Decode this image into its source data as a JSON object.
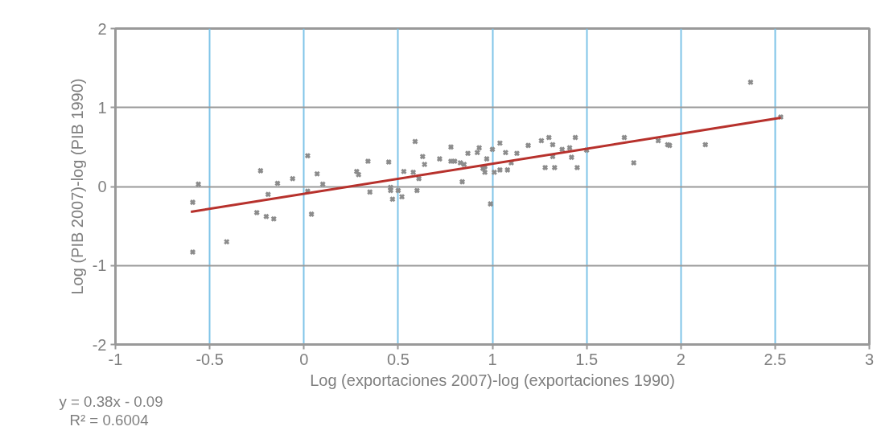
{
  "chart_data": {
    "type": "scatter",
    "xlabel": "Log (exportaciones 2007)-log (exportaciones 1990)",
    "ylabel": "Log (PIB 2007)-log (PIB 1990)",
    "xlim": [
      -1,
      3
    ],
    "ylim": [
      -2,
      2
    ],
    "xticks": [
      -1,
      -0.5,
      0,
      0.5,
      1,
      1.5,
      2,
      2.5,
      3
    ],
    "yticks": [
      -2,
      -1,
      0,
      1,
      2
    ],
    "grid": true,
    "annotations": [
      "y = 0.38x - 0.09",
      "R² = 0.6004"
    ],
    "series": [
      {
        "color": "#8c8c8c",
        "marker": "cross",
        "x": [
          -0.59,
          -0.56,
          -0.59,
          -0.41,
          -0.23,
          -0.25,
          -0.2,
          -0.16,
          -0.19,
          -0.14,
          -0.06,
          0.02,
          0.02,
          0.04,
          0.07,
          0.1,
          0.28,
          0.29,
          0.34,
          0.35,
          0.45,
          0.46,
          0.46,
          0.47,
          0.5,
          0.53,
          0.52,
          0.59,
          0.58,
          0.63,
          0.6,
          0.61,
          0.64,
          0.72,
          0.78,
          0.78,
          0.8,
          0.83,
          0.84,
          0.85,
          0.87,
          0.92,
          0.93,
          0.95,
          0.96,
          0.96,
          0.97,
          0.99,
          1.0,
          1.01,
          1.04,
          1.07,
          1.04,
          1.08,
          1.1,
          1.13,
          1.19,
          1.26,
          1.28,
          1.3,
          1.32,
          1.32,
          1.33,
          1.37,
          1.44,
          1.41,
          1.42,
          1.45,
          1.5,
          1.7,
          1.75,
          1.88,
          1.93,
          1.94,
          2.13,
          2.37,
          2.53
        ],
        "values": [
          -0.2,
          0.03,
          -0.83,
          -0.7,
          0.2,
          -0.33,
          -0.38,
          -0.41,
          -0.1,
          0.04,
          0.1,
          0.39,
          -0.06,
          -0.35,
          0.16,
          0.03,
          0.19,
          0.15,
          0.32,
          -0.07,
          0.31,
          -0.01,
          -0.05,
          -0.16,
          -0.05,
          0.19,
          -0.13,
          0.57,
          0.18,
          0.38,
          -0.05,
          0.1,
          0.28,
          0.35,
          0.5,
          0.32,
          0.32,
          0.3,
          0.06,
          0.28,
          0.42,
          0.43,
          0.49,
          0.23,
          0.18,
          0.25,
          0.35,
          -0.22,
          0.47,
          0.18,
          0.55,
          0.43,
          0.21,
          0.21,
          0.3,
          0.42,
          0.52,
          0.58,
          0.24,
          0.62,
          0.53,
          0.38,
          0.24,
          0.47,
          0.62,
          0.49,
          0.37,
          0.24,
          0.46,
          0.62,
          0.3,
          0.58,
          0.53,
          0.52,
          0.53,
          1.32,
          0.88
        ]
      },
      {
        "type": "line",
        "marker": "none",
        "color": "#b7312c",
        "x": [
          -0.6,
          2.53
        ],
        "values": [
          -0.32,
          0.87
        ]
      }
    ]
  }
}
